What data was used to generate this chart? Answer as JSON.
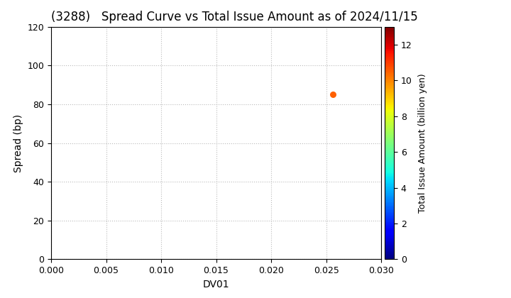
{
  "title": "(3288)   Spread Curve vs Total Issue Amount as of 2024/11/15",
  "xlabel": "DV01",
  "ylabel": "Spread (bp)",
  "colorbar_label": "Total Issue Amount (billion yen)",
  "xlim": [
    0.0,
    0.03
  ],
  "ylim": [
    0,
    120
  ],
  "xticks": [
    0.0,
    0.005,
    0.01,
    0.015,
    0.02,
    0.025,
    0.03
  ],
  "yticks": [
    0,
    20,
    40,
    60,
    80,
    100,
    120
  ],
  "colorbar_min": 0,
  "colorbar_max": 13,
  "colorbar_ticks": [
    0,
    2,
    4,
    6,
    8,
    10,
    12
  ],
  "scatter_x": [
    0.0256
  ],
  "scatter_y": [
    85
  ],
  "scatter_value": [
    10.5
  ],
  "background_color": "#ffffff",
  "grid_color": "#bbbbbb",
  "title_fontsize": 12,
  "axis_fontsize": 10,
  "colorbar_fontsize": 9,
  "tick_fontsize": 9
}
